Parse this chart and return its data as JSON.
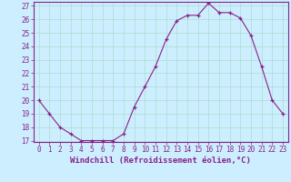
{
  "x": [
    0,
    1,
    2,
    3,
    4,
    5,
    6,
    7,
    8,
    9,
    10,
    11,
    12,
    13,
    14,
    15,
    16,
    17,
    18,
    19,
    20,
    21,
    22,
    23
  ],
  "y": [
    20,
    19,
    18,
    17.5,
    17,
    17,
    17,
    17,
    17.5,
    19.5,
    21,
    22.5,
    24.5,
    25.9,
    26.3,
    26.3,
    27.2,
    26.5,
    26.5,
    26.1,
    24.8,
    22.5,
    20,
    19
  ],
  "line_color": "#882288",
  "marker": "+",
  "bg_color": "#cceeff",
  "grid_color": "#aaddcc",
  "xlabel": "Windchill (Refroidissement éolien,°C)",
  "ylim": [
    17,
    27
  ],
  "xlim": [
    -0.5,
    23.5
  ],
  "yticks": [
    17,
    18,
    19,
    20,
    21,
    22,
    23,
    24,
    25,
    26,
    27
  ],
  "xticks": [
    0,
    1,
    2,
    3,
    4,
    5,
    6,
    7,
    8,
    9,
    10,
    11,
    12,
    13,
    14,
    15,
    16,
    17,
    18,
    19,
    20,
    21,
    22,
    23
  ],
  "xtick_labels": [
    "0",
    "1",
    "2",
    "3",
    "4",
    "5",
    "6",
    "7",
    "8",
    "9",
    "10",
    "11",
    "12",
    "13",
    "14",
    "15",
    "16",
    "17",
    "18",
    "19",
    "20",
    "21",
    "22",
    "23"
  ],
  "tick_fontsize": 5.5,
  "xlabel_fontsize": 6.5
}
